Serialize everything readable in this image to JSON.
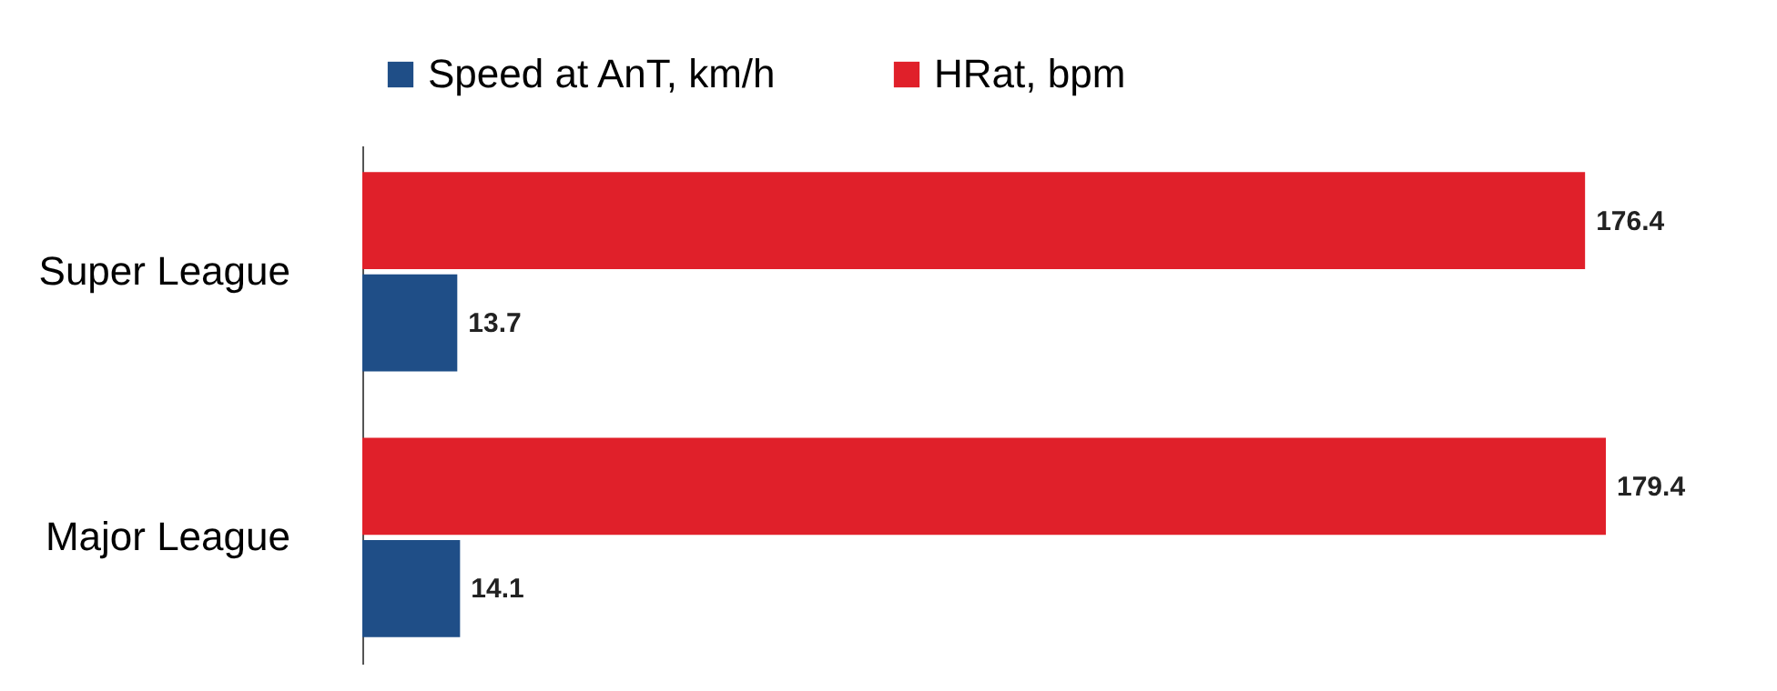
{
  "chart_data": {
    "type": "bar",
    "orientation": "horizontal",
    "categories": [
      "Super League",
      "Major League"
    ],
    "series": [
      {
        "name": "Speed at AnT, km/h",
        "color": "#1f4e87",
        "values": [
          13.7,
          14.1
        ]
      },
      {
        "name": "HRat, bpm",
        "color": "#e0202a",
        "values": [
          176.4,
          179.4
        ]
      }
    ],
    "data_labels": true,
    "legend": "top",
    "grid": false,
    "tick_labels": "y"
  }
}
